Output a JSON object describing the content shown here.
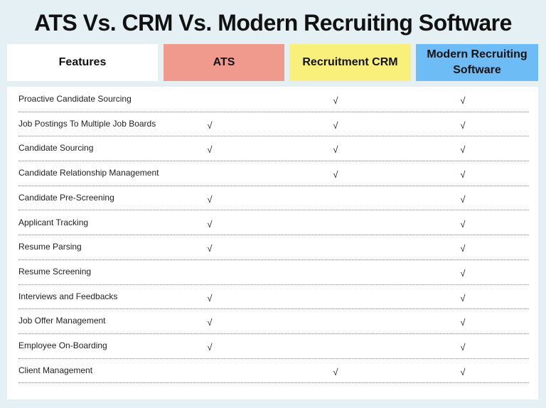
{
  "title": "ATS Vs. CRM Vs. Modern Recruiting Software",
  "columns": [
    {
      "label": "Features",
      "color": "#ffffff"
    },
    {
      "label": "ATS",
      "color": "#f09a8e"
    },
    {
      "label": "Recruitment CRM",
      "color": "#f8f07a"
    },
    {
      "label": "Modern Recruiting Software",
      "color": "#6ebcf5"
    }
  ],
  "check_glyph": "√",
  "rows": [
    {
      "feature": "Proactive Candidate Sourcing",
      "ats": false,
      "crm": true,
      "modern": true
    },
    {
      "feature": "Job Postings To Multiple Job Boards",
      "ats": true,
      "crm": true,
      "modern": true
    },
    {
      "feature": "Candidate Sourcing",
      "ats": true,
      "crm": true,
      "modern": true
    },
    {
      "feature": "Candidate Relationship Management",
      "ats": false,
      "crm": true,
      "modern": true
    },
    {
      "feature": "Candidate Pre-Screening",
      "ats": true,
      "crm": false,
      "modern": true
    },
    {
      "feature": "Applicant Tracking",
      "ats": true,
      "crm": false,
      "modern": true
    },
    {
      "feature": "Resume Parsing",
      "ats": true,
      "crm": false,
      "modern": true
    },
    {
      "feature": "Resume Screening",
      "ats": false,
      "crm": false,
      "modern": true
    },
    {
      "feature": "Interviews and Feedbacks",
      "ats": true,
      "crm": false,
      "modern": true
    },
    {
      "feature": "Job Offer Management",
      "ats": true,
      "crm": false,
      "modern": true
    },
    {
      "feature": "Employee On-Boarding",
      "ats": true,
      "crm": false,
      "modern": true
    },
    {
      "feature": "Client Management",
      "ats": false,
      "crm": true,
      "modern": true
    }
  ]
}
